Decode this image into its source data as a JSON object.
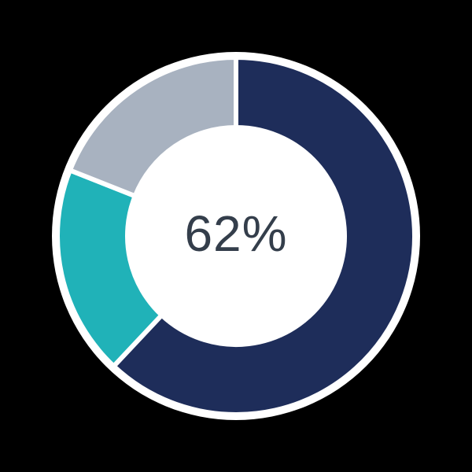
{
  "canvas": {
    "background_color": "#000000",
    "halo_color": "#ffffff",
    "separator_color": "#ffffff",
    "hole_color": "#ffffff"
  },
  "chart_data": {
    "type": "pie",
    "subtype": "donut",
    "title": "",
    "center_label": "62%",
    "center_label_color": "#343e4b",
    "start_angle_deg": 0,
    "direction": "clockwise",
    "legend": "none",
    "segments": [
      {
        "name": "segment-primary-navy",
        "value": 62,
        "color": "#1e2d5a"
      },
      {
        "name": "segment-teal",
        "value": 19,
        "color": "#20b2b8"
      },
      {
        "name": "segment-gray",
        "value": 19,
        "color": "#a8b2c0"
      }
    ]
  }
}
